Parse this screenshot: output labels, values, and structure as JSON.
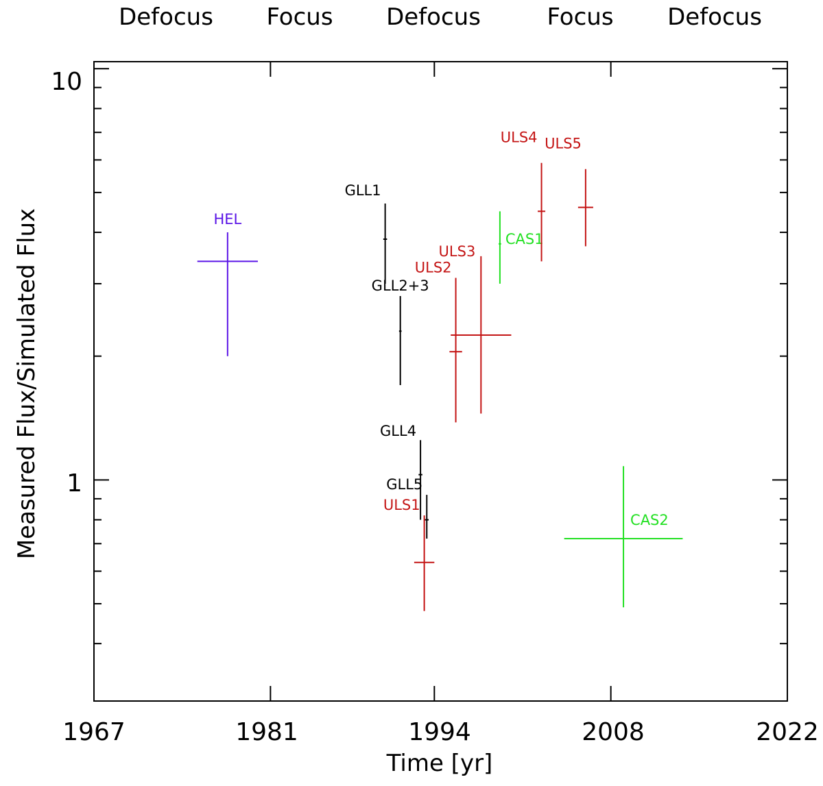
{
  "chart_data": {
    "type": "scatter",
    "title": "",
    "top_labels": [
      "Defocus",
      "Focus",
      "Defocus",
      "Focus",
      "Defocus"
    ],
    "xlabel": "Time [yr]",
    "ylabel": "Measured Flux/Simulated Flux",
    "xlim": [
      1967,
      2022
    ],
    "ylim": [
      0.29,
      10.4
    ],
    "yscale": "log",
    "x_ticks": [
      "1967",
      "1981",
      "1994",
      "2008",
      "2022"
    ],
    "y_ticks": [
      "1",
      "10"
    ],
    "colors": {
      "HEL": "#5a14e6",
      "GLL": "#000000",
      "ULS": "#c41414",
      "CAS": "#22e022"
    },
    "points": [
      {
        "label": "HEL",
        "group": "HEL",
        "x": 1977.6,
        "y": 3.4,
        "x_err": [
          2.4,
          2.4
        ],
        "y_range": [
          2.0,
          4.0
        ]
      },
      {
        "label": "GLL1",
        "group": "GLL",
        "x": 1990.1,
        "y": 3.85,
        "x_err": [
          0.15,
          0.15
        ],
        "y_range": [
          3.0,
          4.7
        ]
      },
      {
        "label": "GLL2+3",
        "group": "GLL",
        "x": 1991.3,
        "y": 2.3,
        "x_err": [
          0.1,
          0.1
        ],
        "y_range": [
          1.7,
          2.8
        ]
      },
      {
        "label": "GLL4",
        "group": "GLL",
        "x": 1992.9,
        "y": 1.03,
        "x_err": [
          0.15,
          0.15
        ],
        "y_range": [
          0.8,
          1.25
        ]
      },
      {
        "label": "GLL5",
        "group": "GLL",
        "x": 1993.4,
        "y": 0.8,
        "x_err": [
          0.15,
          0.15
        ],
        "y_range": [
          0.72,
          0.92
        ]
      },
      {
        "label": "ULS1",
        "group": "ULS",
        "x": 1993.2,
        "y": 0.63,
        "x_err": [
          0.8,
          0.8
        ],
        "y_range": [
          0.48,
          0.82
        ]
      },
      {
        "label": "ULS2",
        "group": "ULS",
        "x": 1995.7,
        "y": 2.05,
        "x_err": [
          0.5,
          0.5
        ],
        "y_range": [
          1.38,
          3.1
        ]
      },
      {
        "label": "ULS3",
        "group": "ULS",
        "x": 1997.7,
        "y": 2.25,
        "x_err": [
          2.4,
          2.4
        ],
        "y_range": [
          1.45,
          3.5
        ]
      },
      {
        "label": "CAS1",
        "group": "CAS",
        "x": 1999.2,
        "y": 3.75,
        "x_err": [
          0.1,
          0.1
        ],
        "y_range": [
          3.0,
          4.5
        ]
      },
      {
        "label": "ULS4",
        "group": "ULS",
        "x": 2002.5,
        "y": 4.5,
        "x_err": [
          0.3,
          0.3
        ],
        "y_range": [
          3.4,
          5.9
        ]
      },
      {
        "label": "ULS5",
        "group": "ULS",
        "x": 2006.0,
        "y": 4.6,
        "x_err": [
          0.6,
          0.6
        ],
        "y_range": [
          3.7,
          5.7
        ]
      },
      {
        "label": "CAS2",
        "group": "CAS",
        "x": 2009.0,
        "y": 0.72,
        "x_err": [
          4.7,
          4.7
        ],
        "y_range": [
          0.49,
          1.08
        ]
      }
    ]
  }
}
